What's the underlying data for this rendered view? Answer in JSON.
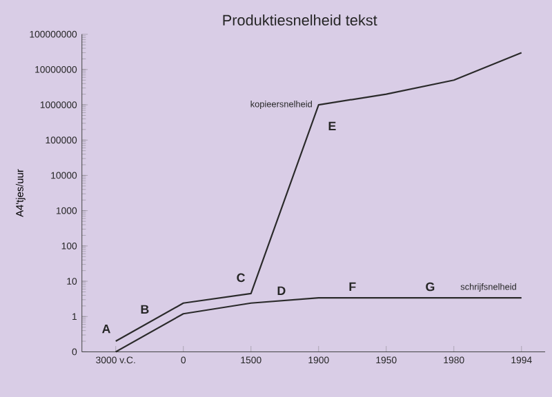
{
  "chart_data": {
    "type": "line",
    "title": "Produktiesnelheid tekst",
    "ylabel": "A4'tjes/uur",
    "categories": [
      "3000 v.C.",
      "0",
      "1500",
      "1900",
      "1950",
      "1980",
      "1994"
    ],
    "series": [
      {
        "name": "kopieersnelheid",
        "color": "#2a2a2a",
        "values": [
          0.2,
          2.4,
          4.5,
          1000000,
          2000000,
          5000000,
          30000000
        ]
      },
      {
        "name": "schrijfsnelheid",
        "color": "#2a2a2a",
        "values": [
          0.1,
          1.2,
          2.4,
          3.4,
          3.4,
          3.4,
          3.4
        ]
      }
    ],
    "log": true,
    "ylim": [
      0.1,
      100000000
    ],
    "yticks": [
      {
        "value": 0.1,
        "label": "0"
      },
      1,
      10,
      100,
      1000,
      10000,
      100000,
      1000000,
      10000000,
      100000000
    ],
    "annotations": [
      "A",
      "B",
      "C",
      "D",
      "E",
      "F",
      "G"
    ],
    "legend": false,
    "grid": false,
    "marker": "none",
    "line_style": "solid"
  }
}
